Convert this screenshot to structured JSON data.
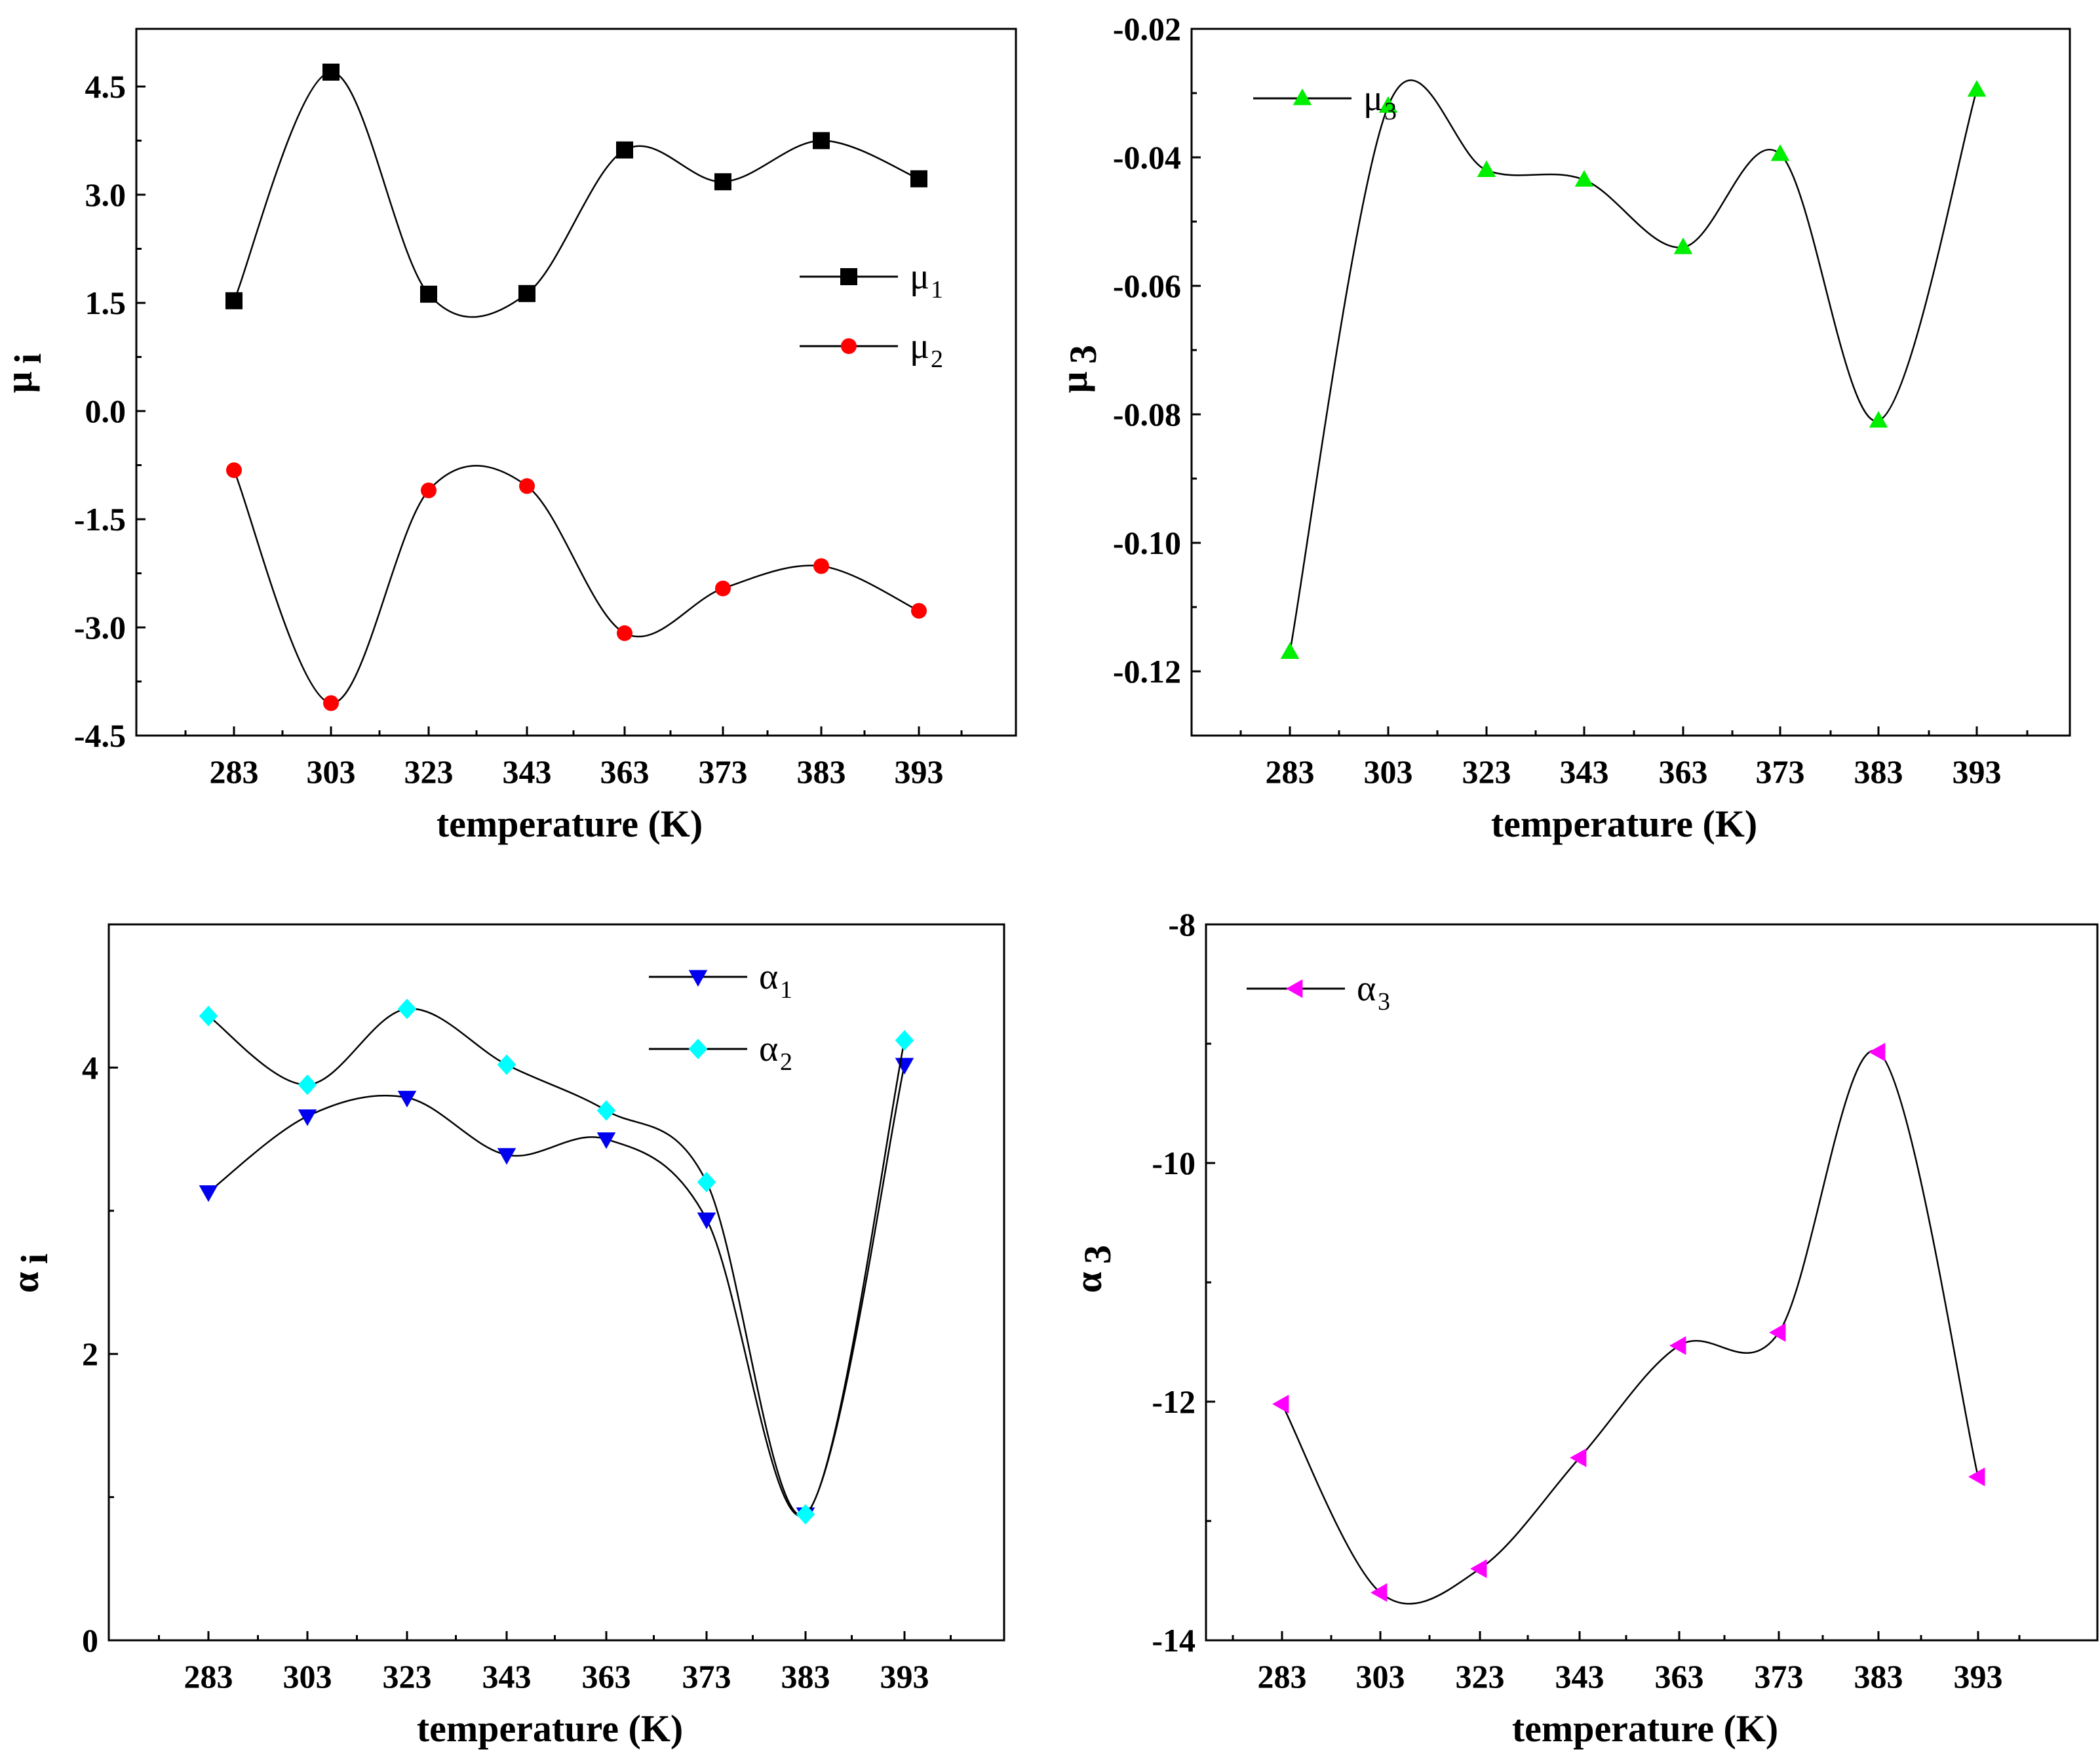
{
  "chart_data": [
    {
      "type": "line",
      "xlabel": "temperature (K)",
      "ylabel": "μ",
      "ylabel_sub": "i",
      "categories": [
        "283",
        "303",
        "323",
        "343",
        "363",
        "373",
        "383",
        "393"
      ],
      "ylim": [
        -4.5,
        5.3
      ],
      "yticks": [
        "4.5",
        "3.0",
        "1.5",
        "0.0",
        "-1.5",
        "-3.0",
        "-4.5"
      ],
      "legend_position": "center-right",
      "series": [
        {
          "name": "μ",
          "sub": "1",
          "marker": "square",
          "color": "#000000",
          "values": [
            1.53,
            4.7,
            1.62,
            1.63,
            3.62,
            3.18,
            3.75,
            3.22
          ]
        },
        {
          "name": "μ",
          "sub": "2",
          "marker": "circle",
          "color": "#ff0000",
          "values": [
            -0.82,
            -4.05,
            -1.1,
            -1.04,
            -3.08,
            -2.46,
            -2.15,
            -2.77
          ]
        }
      ]
    },
    {
      "type": "line",
      "xlabel": "temperature (K)",
      "ylabel": "μ",
      "ylabel_sub": "3",
      "categories": [
        "283",
        "303",
        "323",
        "343",
        "363",
        "373",
        "383",
        "393"
      ],
      "ylim": [
        -0.13,
        -0.02
      ],
      "yticks": [
        "-0.02",
        "-0.04",
        "-0.06",
        "-0.08",
        "-0.10",
        "-0.12"
      ],
      "legend_position": "top-left",
      "series": [
        {
          "name": "μ",
          "sub": "3",
          "marker": "triangle-up",
          "color": "#00ee00",
          "values": [
            -0.117,
            -0.032,
            -0.042,
            -0.0435,
            -0.054,
            -0.0395,
            -0.081,
            -0.0295
          ]
        }
      ]
    },
    {
      "type": "line",
      "xlabel": "temperature (K)",
      "ylabel": "α",
      "ylabel_sub": "i",
      "categories": [
        "283",
        "303",
        "323",
        "343",
        "363",
        "373",
        "383",
        "393"
      ],
      "ylim": [
        0,
        5
      ],
      "yticks": [
        "4",
        "2",
        "0"
      ],
      "legend_position": "top-center",
      "series": [
        {
          "name": "α",
          "sub": "1",
          "marker": "triangle-down",
          "color": "#0000ee",
          "values": [
            3.13,
            3.66,
            3.79,
            3.39,
            3.5,
            2.94,
            0.88,
            4.02
          ]
        },
        {
          "name": "α",
          "sub": "2",
          "marker": "diamond",
          "color": "#00ffff",
          "values": [
            4.36,
            3.88,
            4.41,
            4.02,
            3.7,
            3.2,
            0.88,
            4.19
          ]
        }
      ]
    },
    {
      "type": "line",
      "xlabel": "temperature (K)",
      "ylabel": "α",
      "ylabel_sub": "3",
      "categories": [
        "283",
        "303",
        "323",
        "343",
        "363",
        "373",
        "383",
        "393"
      ],
      "ylim": [
        -14,
        -8
      ],
      "yticks": [
        "-8",
        "-10",
        "-12",
        "-14"
      ],
      "legend_position": "top-left",
      "series": [
        {
          "name": "α",
          "sub": "3",
          "marker": "triangle-left",
          "color": "#ff00ff",
          "values": [
            -12.02,
            -13.6,
            -13.4,
            -12.47,
            -11.53,
            -11.42,
            -9.07,
            -12.63
          ]
        }
      ]
    }
  ]
}
